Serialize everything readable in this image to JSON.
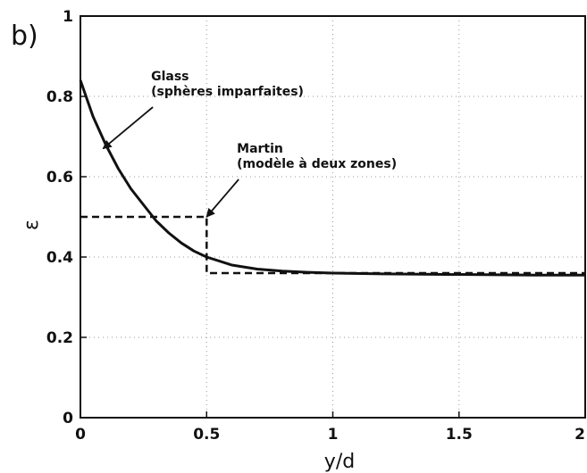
{
  "chart_data": {
    "type": "line",
    "panel_label": "b)",
    "xlabel": "y/d",
    "ylabel": "ε",
    "xlim": [
      0,
      2
    ],
    "ylim": [
      0,
      1
    ],
    "x_ticks": [
      0,
      0.5,
      1,
      1.5,
      2
    ],
    "x_tick_labels": [
      "0",
      "0.5",
      "1",
      "1.5",
      "2"
    ],
    "y_ticks": [
      0,
      0.2,
      0.4,
      0.6,
      0.8,
      1
    ],
    "y_tick_labels": [
      "0",
      "0.2",
      "0.4",
      "0.6",
      "0.8",
      "1"
    ],
    "grid": "dotted",
    "series": [
      {
        "name": "Glass (sphères imparfaites)",
        "style": "solid",
        "x": [
          0,
          0.05,
          0.1,
          0.15,
          0.2,
          0.25,
          0.3,
          0.35,
          0.4,
          0.45,
          0.5,
          0.6,
          0.7,
          0.8,
          0.9,
          1.0,
          1.2,
          1.4,
          1.6,
          1.8,
          2.0
        ],
        "y": [
          0.84,
          0.75,
          0.68,
          0.62,
          0.57,
          0.53,
          0.49,
          0.46,
          0.435,
          0.415,
          0.4,
          0.38,
          0.37,
          0.365,
          0.362,
          0.36,
          0.358,
          0.357,
          0.356,
          0.355,
          0.355
        ]
      },
      {
        "name": "Martin (modèle à deux zones)",
        "style": "dashed",
        "x": [
          0,
          0.5,
          0.5,
          2.0
        ],
        "y": [
          0.5,
          0.5,
          0.36,
          0.36
        ]
      }
    ],
    "annotations": [
      {
        "lines": [
          "Glass",
          "(sphères imparfaites)"
        ],
        "text_at": [
          0.28,
          0.84
        ],
        "arrow_to": [
          0.09,
          0.67
        ]
      },
      {
        "lines": [
          "Martin",
          "(modèle à deux zones)"
        ],
        "text_at": [
          0.62,
          0.66
        ],
        "arrow_to": [
          0.5,
          0.5
        ]
      }
    ],
    "colors": {
      "line": "#111111",
      "grid": "#9a9a9a",
      "axis": "#111111"
    }
  }
}
